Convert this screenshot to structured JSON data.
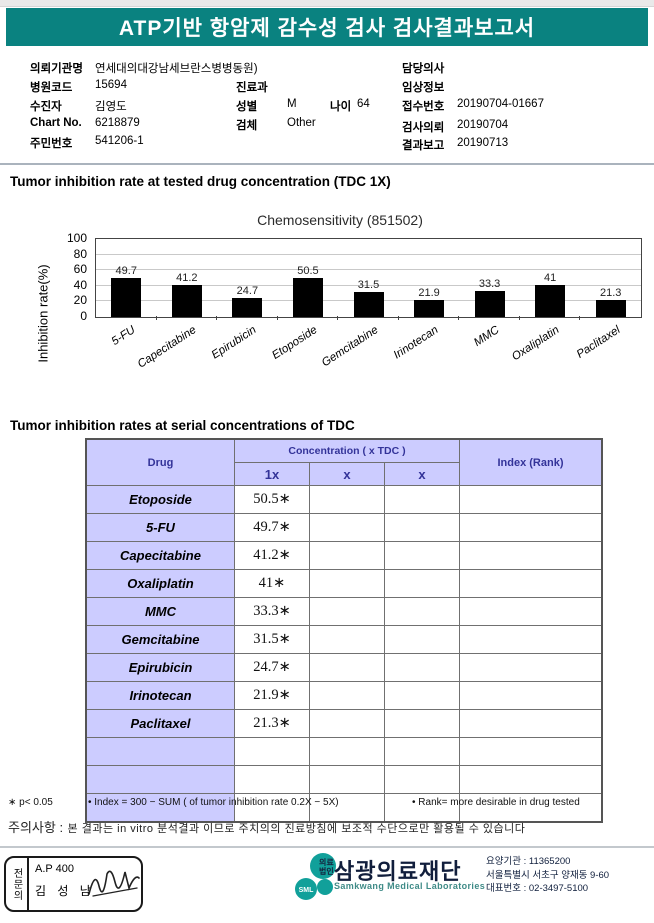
{
  "header": {
    "title": "ATP기반 항암제 감수성 검사 검사결과보고서"
  },
  "patient_info": {
    "left": [
      {
        "label": "의뢰기관명",
        "value": "연세대의대강남세브란스병병동원)"
      },
      {
        "label": "병원코드",
        "value": "15694"
      },
      {
        "label": "수진자",
        "value": "김영도"
      },
      {
        "label": "Chart No.",
        "value": "6218879"
      },
      {
        "label": "주민번호",
        "value": "541206-1"
      }
    ],
    "middle": [
      {
        "label": "진료과",
        "value": ""
      },
      {
        "label": "성별",
        "value": "M",
        "label2": "나이",
        "value2": "64"
      },
      {
        "label": "검체",
        "value": "Other"
      }
    ],
    "right": [
      {
        "label": "담당의사",
        "value": ""
      },
      {
        "label": "임상정보",
        "value": ""
      },
      {
        "label": "접수번호",
        "value": "20190704-01667"
      },
      {
        "label": "검사의뢰",
        "value": "20190704"
      },
      {
        "label": "결과보고",
        "value": "20190713"
      }
    ]
  },
  "section1_title": "Tumor inhibition rate at tested drug concentration (TDC 1X)",
  "chart_data": {
    "type": "bar",
    "title": "Chemosensitivity (851502)",
    "ylabel": "Inhibition rate(%)",
    "xlabel": "",
    "categories": [
      "5-FU",
      "Capecitabine",
      "Epirubicin",
      "Etoposide",
      "Gemcitabine",
      "Irinotecan",
      "MMC",
      "Oxaliplatin",
      "Paclitaxel"
    ],
    "values": [
      49.7,
      41.2,
      24.7,
      50.5,
      31.5,
      21.9,
      33.3,
      41,
      21.3
    ],
    "value_labels": [
      "49.7",
      "41.2",
      "24.7",
      "50.5",
      "31.5",
      "21.9",
      "33.3",
      "41",
      "21.3"
    ],
    "ylim": [
      0,
      100
    ],
    "yticks": [
      0,
      20,
      40,
      60,
      80,
      100
    ],
    "grid": true,
    "bar_color": "#000000",
    "legend": null
  },
  "section2_title": "Tumor inhibition rates at serial concentrations of TDC",
  "table": {
    "header": {
      "drug": "Drug",
      "concentration": "Concentration ( x TDC )",
      "sub_cols": [
        "1x",
        "x",
        "x"
      ],
      "index": "Index (Rank)"
    },
    "rows": [
      {
        "drug": "Etoposide",
        "c1": "50.5∗",
        "c2": "",
        "c3": "",
        "index": ""
      },
      {
        "drug": "5-FU",
        "c1": "49.7∗",
        "c2": "",
        "c3": "",
        "index": ""
      },
      {
        "drug": "Capecitabine",
        "c1": "41.2∗",
        "c2": "",
        "c3": "",
        "index": ""
      },
      {
        "drug": "Oxaliplatin",
        "c1": "41∗",
        "c2": "",
        "c3": "",
        "index": ""
      },
      {
        "drug": "MMC",
        "c1": "33.3∗",
        "c2": "",
        "c3": "",
        "index": ""
      },
      {
        "drug": "Gemcitabine",
        "c1": "31.5∗",
        "c2": "",
        "c3": "",
        "index": ""
      },
      {
        "drug": "Epirubicin",
        "c1": "24.7∗",
        "c2": "",
        "c3": "",
        "index": ""
      },
      {
        "drug": "Irinotecan",
        "c1": "21.9∗",
        "c2": "",
        "c3": "",
        "index": ""
      },
      {
        "drug": "Paclitaxel",
        "c1": "21.3∗",
        "c2": "",
        "c3": "",
        "index": ""
      }
    ],
    "empty_rows": 3
  },
  "footnotes": {
    "p_note": "∗ p< 0.05",
    "index_note": "• Index = 300 − SUM ( of tumor inhibition rate 0.2X  −  5X)",
    "rank_note": "• Rank= more desirable in drug tested"
  },
  "caution": {
    "label": "주의사항 :",
    "text": "본 결과는 in vitro 분석결과 이므로 주치의의 진료방침에 보조적 수단으로만 활용될 수 있습니다"
  },
  "footer": {
    "sign_box": {
      "side_label": "전문의",
      "line1": "A.P 400",
      "line2": "김 성 남"
    },
    "lab": {
      "logo_text": "SML",
      "org_type_line1": "의료",
      "org_type_line2": "법인",
      "name": "삼광의료재단",
      "name_en": "Samkwang Medical Laboratories"
    },
    "contact": {
      "line1": "요양기관 : 11365200",
      "line2": "서울특별시 서초구 양재동 9-60",
      "line3": "대표번호 : 02-3497-5100"
    }
  },
  "colors": {
    "banner_teal": "#0a8280",
    "logo_teal": "#11a09a",
    "table_header_bg": "#ccccff",
    "table_header_text": "#333399",
    "bar_color": "#000000"
  }
}
